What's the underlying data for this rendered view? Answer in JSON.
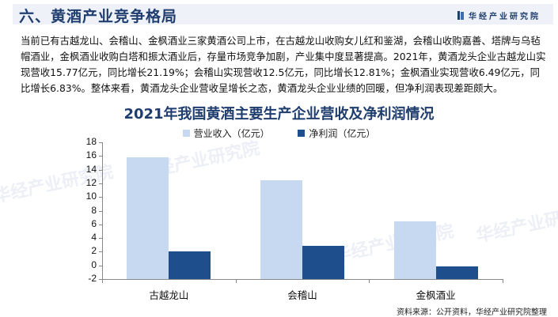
{
  "header": {
    "title": "六、黄酒产业竞争格局",
    "brand": "华经产业研究院"
  },
  "paragraph": "当前已有古越龙山、会稽山、金枫酒业三家黄酒公司上市，在古越龙山收购女儿红和鉴湖，会稽山收购嘉善、塔牌与乌毡帽酒业，金枫酒业收购白塔和振太酒业后，存量市场竞争加剧，产业集中度显著提高。2021年，黄酒龙头企业古越龙山实现营收15.77亿元，同比增长21.19%；会稽山实现营收12.5亿元，同比增长12.81%；金枫酒业实现营收6.49亿元，同比增长6.83%。整体来看，黄酒龙头企业营收呈增长之态，黄酒龙头企业业绩的回暖，但净利润表现差距颇大。",
  "watermark": "华经产业研究院",
  "source": "资料来源：公开资料，华经产业研究院整理",
  "colors": {
    "revenue": "#c6d9f0",
    "profit": "#1f4e8c",
    "title": "#1f3d6e"
  },
  "chart_data": {
    "type": "bar",
    "title": "2021年我国黄酒主要生产企业营收及净利润情况",
    "categories": [
      "古越龙山",
      "会稽山",
      "金枫酒业"
    ],
    "series": [
      {
        "name": "营业收入（亿元）",
        "values": [
          15.77,
          12.5,
          6.49
        ]
      },
      {
        "name": "净利润（亿元）",
        "values": [
          2.0,
          2.8,
          -0.2
        ]
      }
    ],
    "xlabel": "",
    "ylabel": "",
    "ylim": [
      -2,
      18
    ],
    "yticks": [
      "18",
      "16",
      "14",
      "12",
      "10",
      "8",
      "6",
      "4",
      "2",
      "0",
      "-2"
    ],
    "grid": false,
    "legend_position": "top"
  }
}
